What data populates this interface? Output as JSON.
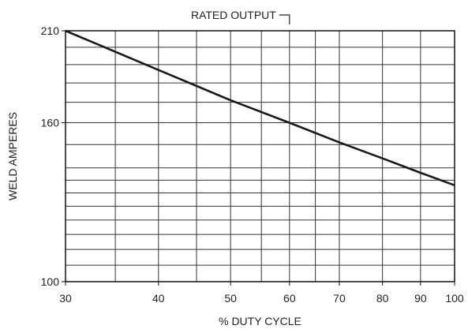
{
  "chart_data": {
    "type": "line",
    "title": "",
    "xlabel": "% DUTY CYCLE",
    "ylabel": "WELD AMPERES",
    "x_scale": "log",
    "y_scale": "log",
    "xlim": [
      30,
      100
    ],
    "ylim": [
      100,
      210
    ],
    "x_major_ticks": [
      30,
      40,
      50,
      60,
      70,
      80,
      90,
      100
    ],
    "x_grid_values": [
      30,
      35,
      40,
      45,
      50,
      55,
      60,
      65,
      70,
      80,
      90,
      100
    ],
    "y_major_ticks": [
      100,
      160,
      210
    ],
    "y_grid_values": [
      100,
      105,
      110,
      115,
      120,
      125,
      130,
      135,
      140,
      150,
      160,
      170,
      180,
      190,
      200,
      210
    ],
    "grid": true,
    "legend": "none",
    "series": [
      {
        "x": [
          30,
          40,
          50,
          60,
          70,
          80,
          90,
          100
        ],
        "y": [
          210,
          187,
          171,
          160,
          151,
          144,
          138,
          133
        ]
      }
    ],
    "annotations": [
      {
        "text": "RATED OUTPUT",
        "x": 60
      }
    ],
    "colors": {
      "line": "#1a1a1a",
      "grid": "#333333",
      "frame": "#111111"
    }
  }
}
